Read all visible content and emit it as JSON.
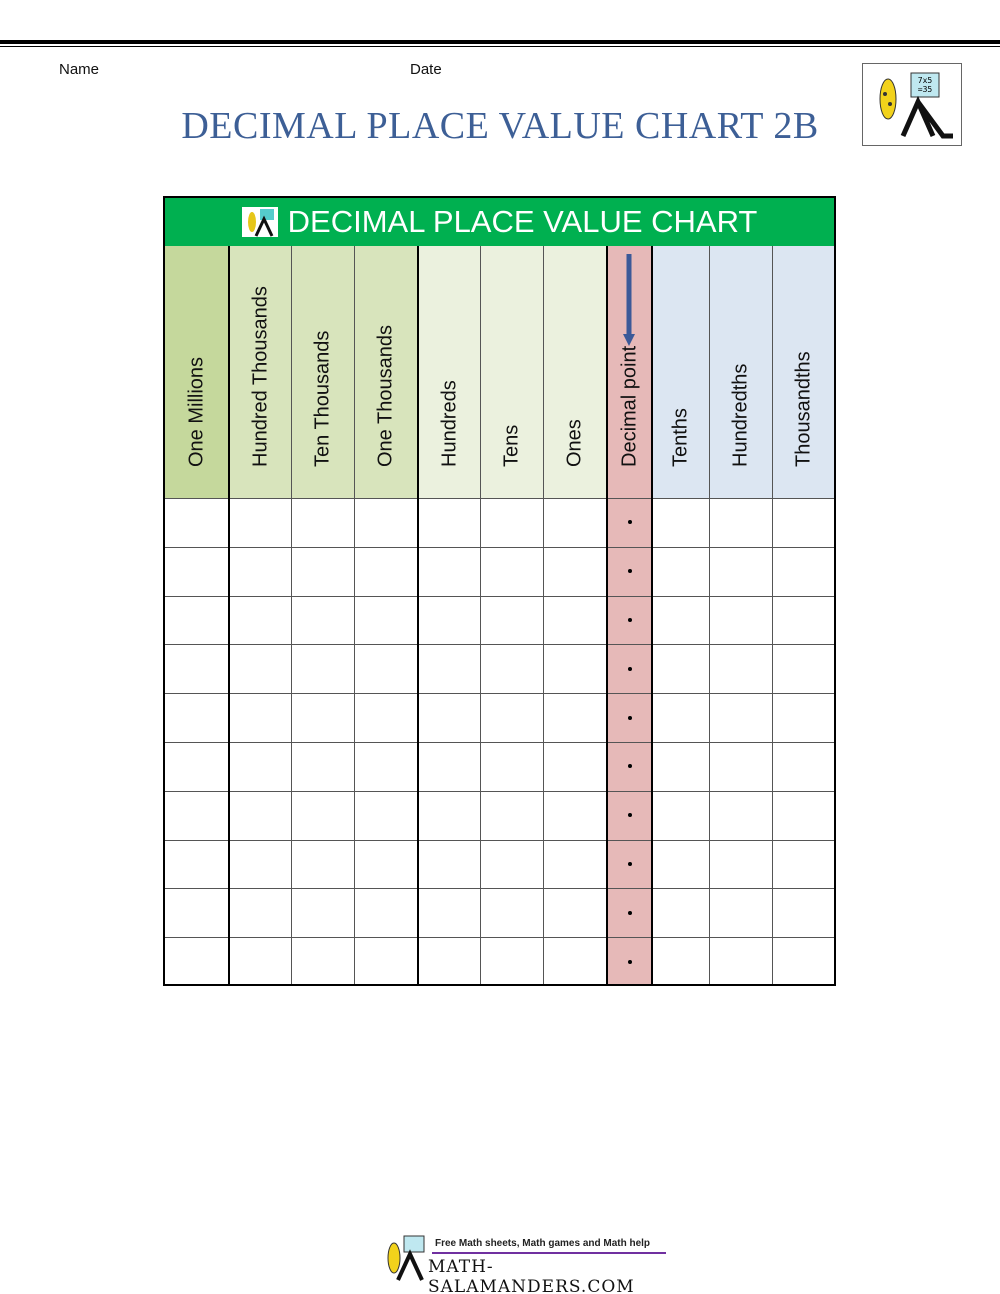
{
  "header": {
    "name_label": "Name",
    "date_label": "Date",
    "title": "DECIMAL PLACE VALUE CHART 2B",
    "logo_text": "7x5=35"
  },
  "chart": {
    "banner": "DECIMAL PLACE VALUE CHART",
    "columns": [
      {
        "label": "One Millions",
        "color": "#c5d89c"
      },
      {
        "label": "Hundred Thousands",
        "color": "#d8e4bc"
      },
      {
        "label": "Ten Thousands",
        "color": "#d8e4bc"
      },
      {
        "label": "One Thousands",
        "color": "#d8e4bc"
      },
      {
        "label": "Hundreds",
        "color": "#ebf1de"
      },
      {
        "label": "Tens",
        "color": "#ebf1de"
      },
      {
        "label": "Ones",
        "color": "#ebf1de"
      },
      {
        "label": "Decimal point",
        "color": "#e6b9b8"
      },
      {
        "label": "Tenths",
        "color": "#dce6f2"
      },
      {
        "label": "Hundredths",
        "color": "#dce6f2"
      },
      {
        "label": "Thousandths",
        "color": "#dce6f2"
      }
    ],
    "rows": 10,
    "decimal_marker": "."
  },
  "footer": {
    "tagline": "Free Math sheets, Math games and Math help",
    "site": "MATH-SALAMANDERS.COM"
  }
}
